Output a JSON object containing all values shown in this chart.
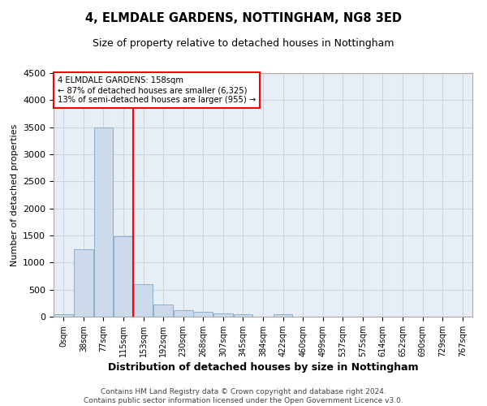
{
  "title1": "4, ELMDALE GARDENS, NOTTINGHAM, NG8 3ED",
  "title2": "Size of property relative to detached houses in Nottingham",
  "xlabel": "Distribution of detached houses by size in Nottingham",
  "ylabel": "Number of detached properties",
  "footer1": "Contains HM Land Registry data © Crown copyright and database right 2024.",
  "footer2": "Contains public sector information licensed under the Open Government Licence v3.0.",
  "bin_labels": [
    "0sqm",
    "38sqm",
    "77sqm",
    "115sqm",
    "153sqm",
    "192sqm",
    "230sqm",
    "268sqm",
    "307sqm",
    "345sqm",
    "384sqm",
    "422sqm",
    "460sqm",
    "499sqm",
    "537sqm",
    "575sqm",
    "614sqm",
    "652sqm",
    "690sqm",
    "729sqm",
    "767sqm"
  ],
  "bar_values": [
    50,
    1250,
    3500,
    1480,
    600,
    230,
    125,
    90,
    55,
    40,
    5,
    50,
    5,
    0,
    0,
    0,
    0,
    0,
    0,
    0,
    0
  ],
  "bar_color": "#ccdaeb",
  "bar_edge_color": "#8ab0d0",
  "grid_color": "#ccd5e0",
  "bg_color": "#e8eef5",
  "red_line_bin_index": 4,
  "annotation_title": "4 ELMDALE GARDENS: 158sqm",
  "annotation_line1": "← 87% of detached houses are smaller (6,325)",
  "annotation_line2": "13% of semi-detached houses are larger (955) →",
  "ylim": [
    0,
    4500
  ],
  "yticks": [
    0,
    500,
    1000,
    1500,
    2000,
    2500,
    3000,
    3500,
    4000,
    4500
  ]
}
